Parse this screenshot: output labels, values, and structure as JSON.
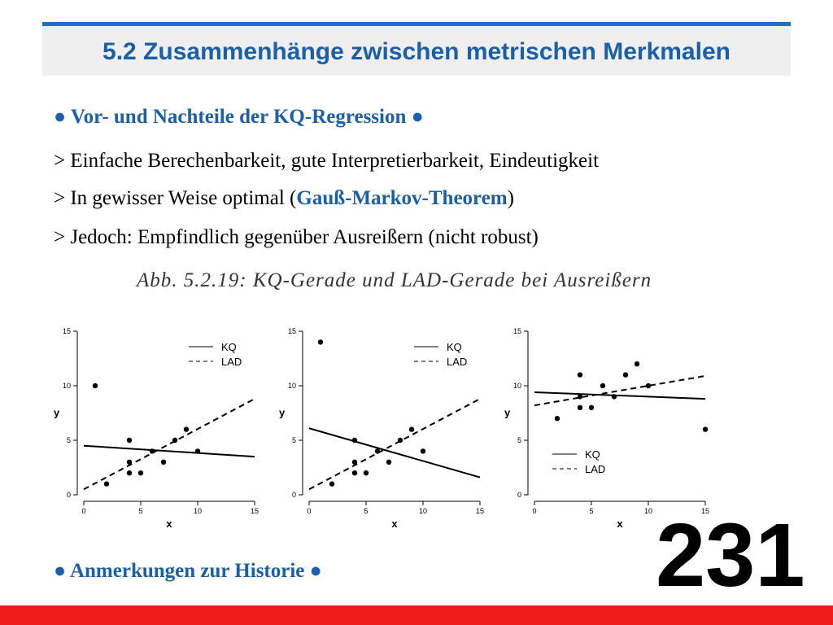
{
  "header": {
    "title": "5.2 Zusammenhänge zwischen metrischen Merkmalen"
  },
  "section1": {
    "heading": "● Vor- und Nachteile der KQ-Regression ●",
    "bullets": [
      {
        "text": "> Einfache Berechenbarkeit, gute Interpretierbarkeit, Eindeutigkeit"
      },
      {
        "prefix": "> In gewisser Weise optimal (",
        "highlight": "Gauß-Markov-Theorem",
        "suffix": ")"
      },
      {
        "text": "> Jedoch: Empfindlich gegenüber Ausreißern (nicht robust)"
      }
    ]
  },
  "figure_caption": "Abb. 5.2.19: KQ-Gerade und LAD-Gerade bei Ausreißern",
  "section2": {
    "heading": "● Anmerkungen zur Historie ●"
  },
  "slide_number": "231",
  "colors": {
    "accent": "#1b5fa8",
    "title_rule": "#1874c8",
    "bottom_bar": "#ee1c1c"
  },
  "chart_data": [
    {
      "type": "scatter",
      "xlabel": "x",
      "ylabel": "y",
      "xlim": [
        0,
        15
      ],
      "ylim": [
        0,
        15
      ],
      "xticks": [
        "0",
        "5",
        "10",
        "15"
      ],
      "yticks": [
        "0",
        "5",
        "10",
        "15"
      ],
      "legend_placement": "top-right",
      "points": [
        [
          1,
          10
        ],
        [
          2,
          1
        ],
        [
          4,
          5
        ],
        [
          4,
          3
        ],
        [
          4,
          2
        ],
        [
          5,
          2
        ],
        [
          6,
          4
        ],
        [
          7,
          3
        ],
        [
          8,
          5
        ],
        [
          9,
          6
        ],
        [
          10,
          4
        ]
      ],
      "lines": [
        {
          "name": "KQ",
          "style": "solid",
          "x": [
            0,
            15
          ],
          "y": [
            4.5,
            3.5
          ]
        },
        {
          "name": "LAD",
          "style": "dashed",
          "x": [
            0,
            15
          ],
          "y": [
            0.5,
            8.8
          ]
        }
      ]
    },
    {
      "type": "scatter",
      "xlabel": "x",
      "ylabel": "y",
      "xlim": [
        0,
        15
      ],
      "ylim": [
        0,
        15
      ],
      "xticks": [
        "0",
        "5",
        "10",
        "15"
      ],
      "yticks": [
        "0",
        "5",
        "10",
        "15"
      ],
      "legend_placement": "top-right",
      "points": [
        [
          1,
          14
        ],
        [
          2,
          1
        ],
        [
          4,
          5
        ],
        [
          4,
          3
        ],
        [
          4,
          2
        ],
        [
          5,
          2
        ],
        [
          6,
          4
        ],
        [
          7,
          3
        ],
        [
          8,
          5
        ],
        [
          9,
          6
        ],
        [
          10,
          4
        ]
      ],
      "lines": [
        {
          "name": "KQ",
          "style": "solid",
          "x": [
            0,
            15
          ],
          "y": [
            6.1,
            1.6
          ]
        },
        {
          "name": "LAD",
          "style": "dashed",
          "x": [
            0,
            15
          ],
          "y": [
            0.5,
            8.8
          ]
        }
      ]
    },
    {
      "type": "scatter",
      "xlabel": "x",
      "ylabel": "y",
      "xlim": [
        0,
        15
      ],
      "ylim": [
        0,
        15
      ],
      "xticks": [
        "0",
        "5",
        "10",
        "15"
      ],
      "yticks": [
        "0",
        "5",
        "10",
        "15"
      ],
      "legend_placement": "bottom-left",
      "points": [
        [
          2,
          7
        ],
        [
          4,
          11
        ],
        [
          4,
          9
        ],
        [
          4,
          8
        ],
        [
          5,
          8
        ],
        [
          6,
          10
        ],
        [
          7,
          9
        ],
        [
          8,
          11
        ],
        [
          9,
          12
        ],
        [
          10,
          10
        ],
        [
          15,
          6
        ]
      ],
      "lines": [
        {
          "name": "KQ",
          "style": "solid",
          "x": [
            0,
            15
          ],
          "y": [
            9.4,
            8.8
          ]
        },
        {
          "name": "LAD",
          "style": "dashed",
          "x": [
            0,
            15
          ],
          "y": [
            8.2,
            10.9
          ]
        }
      ]
    }
  ]
}
